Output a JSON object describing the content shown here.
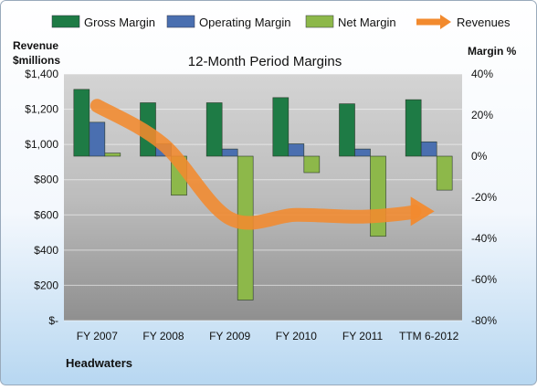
{
  "chart_data": {
    "type": "bar",
    "title": "12-Month Period Margins",
    "company": "Headwaters",
    "left_axis_label": [
      "Revenue",
      "$millions"
    ],
    "right_axis_label": "Margin %",
    "categories": [
      "FY 2007",
      "FY 2008",
      "FY 2009",
      "FY 2010",
      "FY 2011",
      "TTM 6-2012"
    ],
    "series": [
      {
        "name": "Gross Margin",
        "axis": "right",
        "color": "#1e7b45",
        "values": [
          32.5,
          26,
          26,
          28.5,
          25.5,
          27.5
        ]
      },
      {
        "name": "Operating Margin",
        "axis": "right",
        "color": "#4a6fb0",
        "values": [
          16.5,
          6,
          3.5,
          6,
          3.5,
          7
        ]
      },
      {
        "name": "Net Margin",
        "axis": "right",
        "color": "#8db84a",
        "values": [
          1.5,
          -19,
          -70,
          -8,
          -39,
          -16.5
        ]
      },
      {
        "name": "Revenues",
        "axis": "left",
        "type": "line",
        "color": "#f28a2e",
        "values": [
          1220,
          1000,
          580,
          600,
          590,
          620
        ]
      }
    ],
    "left_axis": {
      "ylim": [
        0,
        1400
      ],
      "ticks": [
        0,
        200,
        400,
        600,
        800,
        1000,
        1200,
        1400
      ],
      "tick_labels": [
        "$-",
        "$200",
        "$400",
        "$600",
        "$800",
        "$1,000",
        "$1,200",
        "$1,400"
      ]
    },
    "right_axis": {
      "ylim": [
        -80,
        40
      ],
      "ticks": [
        -80,
        -60,
        -40,
        -20,
        0,
        20,
        40
      ],
      "tick_labels": [
        "-80%",
        "-60%",
        "-40%",
        "-20%",
        "0%",
        "20%",
        "40%"
      ]
    },
    "grid": true,
    "legend": "top"
  }
}
